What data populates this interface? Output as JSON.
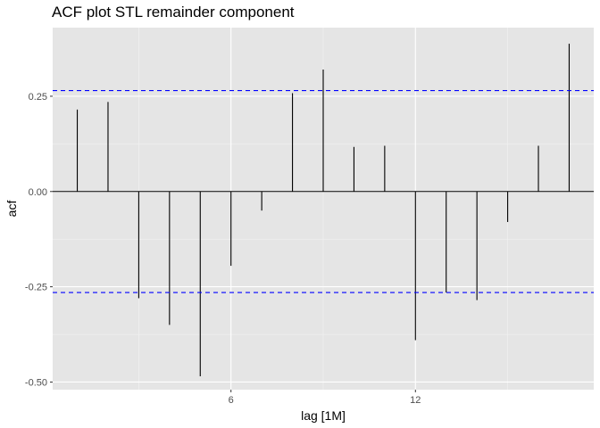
{
  "chart_data": {
    "type": "bar",
    "title": "ACF plot STL remainder component",
    "xlabel": "lag [1M]",
    "ylabel": "acf",
    "xlim": [
      0.2,
      17.8
    ],
    "ylim": [
      -0.52,
      0.43
    ],
    "x_ticks": [
      6,
      12
    ],
    "y_ticks": [
      -0.5,
      -0.25,
      0.0,
      0.25
    ],
    "y_tick_labels": [
      "-0.50",
      "-0.25",
      "0.00",
      "0.25"
    ],
    "x": [
      1,
      2,
      3,
      4,
      5,
      6,
      7,
      8,
      9,
      10,
      11,
      12,
      13,
      14,
      15,
      16,
      17
    ],
    "values": [
      0.215,
      0.235,
      -0.28,
      -0.35,
      -0.485,
      -0.195,
      -0.05,
      0.258,
      0.32,
      0.117,
      0.12,
      -0.39,
      -0.265,
      -0.285,
      -0.08,
      0.12,
      0.388
    ],
    "confidence_bound": 0.265,
    "bar_color": "#000000",
    "ci_color": "#0000ff",
    "panel_background": "#e5e5e5",
    "grid": true
  }
}
